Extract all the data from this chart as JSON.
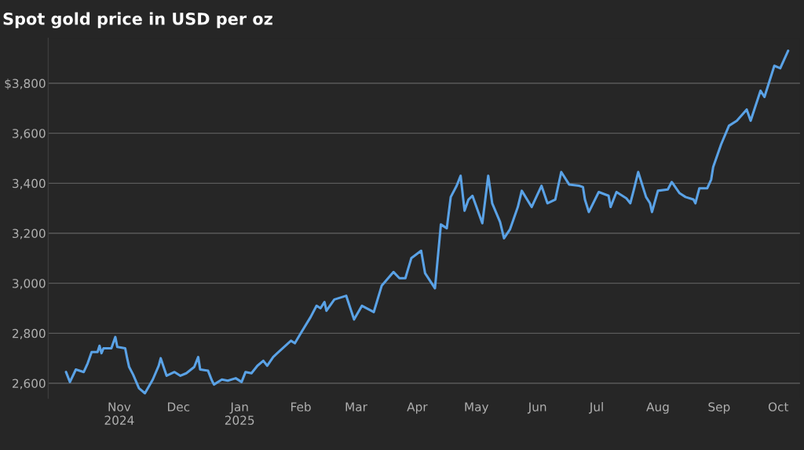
{
  "chart_data": {
    "type": "line",
    "title": "Spot gold price in USD per oz",
    "x": [
      "2024-10-05",
      "2024-10-07",
      "2024-10-10",
      "2024-10-14",
      "2024-10-16",
      "2024-10-18",
      "2024-10-21",
      "2024-10-22",
      "2024-10-23",
      "2024-10-24",
      "2024-10-28",
      "2024-10-30",
      "2024-10-31",
      "2024-11-04",
      "2024-11-05",
      "2024-11-06",
      "2024-11-08",
      "2024-11-11",
      "2024-11-14",
      "2024-11-18",
      "2024-11-21",
      "2024-11-22",
      "2024-11-25",
      "2024-11-29",
      "2024-12-02",
      "2024-12-05",
      "2024-12-09",
      "2024-12-11",
      "2024-12-12",
      "2024-12-16",
      "2024-12-18",
      "2024-12-19",
      "2024-12-23",
      "2024-12-26",
      "2024-12-30",
      "2025-01-02",
      "2025-01-04",
      "2025-01-07",
      "2025-01-10",
      "2025-01-13",
      "2025-01-15",
      "2025-01-18",
      "2025-01-20",
      "2025-01-27",
      "2025-01-29",
      "2025-02-01",
      "2025-02-06",
      "2025-02-09",
      "2025-02-11",
      "2025-02-13",
      "2025-02-14",
      "2025-02-18",
      "2025-02-24",
      "2025-02-28",
      "2025-03-04",
      "2025-03-10",
      "2025-03-14",
      "2025-03-20",
      "2025-03-23",
      "2025-03-26",
      "2025-03-29",
      "2025-04-03",
      "2025-04-05",
      "2025-04-10",
      "2025-04-13",
      "2025-04-16",
      "2025-04-18",
      "2025-04-21",
      "2025-04-23",
      "2025-04-25",
      "2025-04-27",
      "2025-04-29",
      "2025-05-04",
      "2025-05-07",
      "2025-05-09",
      "2025-05-13",
      "2025-05-15",
      "2025-05-18",
      "2025-05-22",
      "2025-05-24",
      "2025-05-29",
      "2025-06-03",
      "2025-06-06",
      "2025-06-10",
      "2025-06-13",
      "2025-06-17",
      "2025-06-22",
      "2025-06-24",
      "2025-06-25",
      "2025-06-27",
      "2025-07-02",
      "2025-07-07",
      "2025-07-08",
      "2025-07-11",
      "2025-07-16",
      "2025-07-18",
      "2025-07-20",
      "2025-07-22",
      "2025-07-26",
      "2025-07-28",
      "2025-07-29",
      "2025-08-01",
      "2025-08-06",
      "2025-08-08",
      "2025-08-12",
      "2025-08-15",
      "2025-08-19",
      "2025-08-20",
      "2025-08-22",
      "2025-08-26",
      "2025-08-28",
      "2025-08-29",
      "2025-09-02",
      "2025-09-06",
      "2025-09-10",
      "2025-09-15",
      "2025-09-17",
      "2025-09-22",
      "2025-09-24",
      "2025-09-29",
      "2025-10-02",
      "2025-10-06"
    ],
    "series": [
      {
        "color": "#5aa2e6",
        "values": [
          2645,
          2605,
          2655,
          2645,
          2680,
          2725,
          2725,
          2750,
          2720,
          2740,
          2740,
          2785,
          2745,
          2740,
          2700,
          2665,
          2635,
          2580,
          2560,
          2615,
          2670,
          2700,
          2630,
          2645,
          2630,
          2640,
          2665,
          2705,
          2655,
          2650,
          2610,
          2595,
          2615,
          2610,
          2620,
          2605,
          2645,
          2640,
          2670,
          2690,
          2670,
          2705,
          2720,
          2770,
          2760,
          2800,
          2865,
          2910,
          2900,
          2925,
          2890,
          2935,
          2950,
          2855,
          2910,
          2885,
          2990,
          3045,
          3020,
          3020,
          3100,
          3130,
          3040,
          2980,
          3235,
          3220,
          3345,
          3390,
          3430,
          3290,
          3335,
          3350,
          3240,
          3430,
          3320,
          3245,
          3180,
          3215,
          3305,
          3370,
          3305,
          3390,
          3320,
          3335,
          3445,
          3395,
          3390,
          3385,
          3335,
          3285,
          3365,
          3350,
          3305,
          3365,
          3340,
          3320,
          3380,
          3445,
          3345,
          3320,
          3285,
          3370,
          3375,
          3405,
          3360,
          3345,
          3335,
          3320,
          3380,
          3380,
          3415,
          3465,
          3555,
          3630,
          3650,
          3695,
          3650,
          3770,
          3745,
          3870,
          3860,
          3930
        ]
      }
    ],
    "xlim": [
      "2024-09-26",
      "2025-10-12"
    ],
    "xticks": [
      {
        "value": "2024-11-01",
        "label": "Nov\n2024"
      },
      {
        "value": "2024-12-01",
        "label": "Dec"
      },
      {
        "value": "2025-01-01",
        "label": "Jan\n2025"
      },
      {
        "value": "2025-02-01",
        "label": "Feb"
      },
      {
        "value": "2025-03-01",
        "label": "Mar"
      },
      {
        "value": "2025-04-01",
        "label": "Apr"
      },
      {
        "value": "2025-05-01",
        "label": "May"
      },
      {
        "value": "2025-06-01",
        "label": "Jun"
      },
      {
        "value": "2025-07-01",
        "label": "Jul"
      },
      {
        "value": "2025-08-01",
        "label": "Aug"
      },
      {
        "value": "2025-09-01",
        "label": "Sep"
      },
      {
        "value": "2025-10-01",
        "label": "Oct"
      }
    ],
    "ylim": [
      2540,
      3980
    ],
    "yticks": [
      {
        "value": 2600,
        "label": "2,600"
      },
      {
        "value": 2800,
        "label": "2,800"
      },
      {
        "value": 3000,
        "label": "3,000"
      },
      {
        "value": 3200,
        "label": "3,200"
      },
      {
        "value": 3400,
        "label": "3,400"
      },
      {
        "value": 3600,
        "label": "3,600"
      },
      {
        "value": 3800,
        "label": "$3,800"
      }
    ],
    "grid": "y",
    "legend": false,
    "marker": "none",
    "line_style": "solid"
  }
}
